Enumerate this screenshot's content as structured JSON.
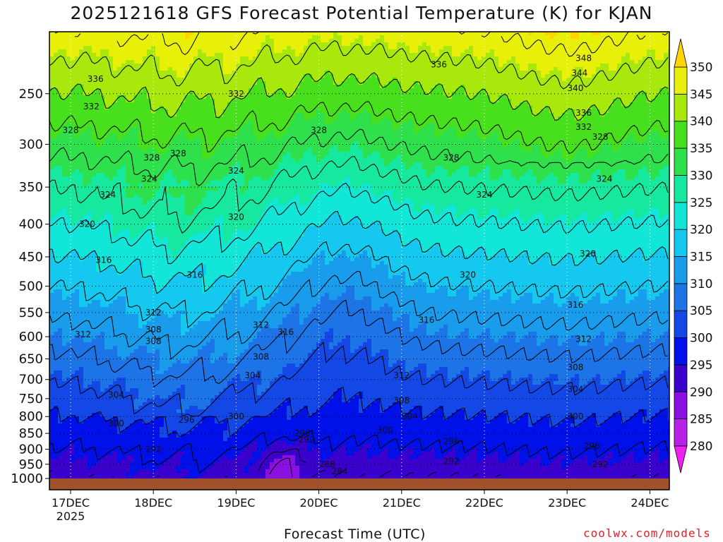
{
  "chart_data": {
    "type": "heatmap",
    "title": "2025121618 GFS Forecast Potential Temperature (K) for KJAN",
    "xlabel": "Forecast Time (UTC)",
    "ylabel": "",
    "credit": "coolwx.com/models",
    "x_ticks": [
      "17DEC",
      "18DEC",
      "19DEC",
      "20DEC",
      "21DEC",
      "22DEC",
      "23DEC",
      "24DEC"
    ],
    "x_year_label": "2025",
    "y_ticks": [
      250,
      300,
      350,
      400,
      450,
      500,
      550,
      600,
      650,
      700,
      750,
      800,
      850,
      900,
      950,
      1000
    ],
    "y_range": [
      1000,
      200
    ],
    "y_scale": "log",
    "grid": true,
    "colorbar": {
      "levels": [
        280,
        285,
        290,
        295,
        300,
        305,
        310,
        315,
        320,
        325,
        330,
        335,
        340,
        345,
        350
      ],
      "colors": [
        "#ee22ee",
        "#b822e8",
        "#8a10e2",
        "#3a00cc",
        "#0010e8",
        "#1448e6",
        "#1d74e6",
        "#1a9cec",
        "#14c8f0",
        "#12e6d8",
        "#16e8a0",
        "#2ee04c",
        "#48e01c",
        "#a8e80c",
        "#e8f00a",
        "#ffd400"
      ],
      "location": "right"
    },
    "contour_levels": [
      284,
      288,
      292,
      296,
      300,
      304,
      308,
      312,
      316,
      320,
      324,
      328,
      332,
      336,
      340,
      344,
      348
    ],
    "contour_labels": [
      {
        "text": "336",
        "x": 0.3,
        "p": 237
      },
      {
        "text": "332",
        "x": 0.25,
        "p": 262
      },
      {
        "text": "328",
        "x": 0.0,
        "p": 285
      },
      {
        "text": "328",
        "x": 0.98,
        "p": 315
      },
      {
        "text": "324",
        "x": 0.95,
        "p": 340
      },
      {
        "text": "324",
        "x": 0.45,
        "p": 360
      },
      {
        "text": "320",
        "x": 0.2,
        "p": 400
      },
      {
        "text": "316",
        "x": 0.4,
        "p": 455
      },
      {
        "text": "312",
        "x": 1.0,
        "p": 550
      },
      {
        "text": "312",
        "x": 0.15,
        "p": 595
      },
      {
        "text": "308",
        "x": 1.0,
        "p": 585
      },
      {
        "text": "304",
        "x": 0.55,
        "p": 740
      },
      {
        "text": "300",
        "x": 0.55,
        "p": 820
      },
      {
        "text": "296",
        "x": 1.4,
        "p": 810
      },
      {
        "text": "292",
        "x": 1.0,
        "p": 900
      },
      {
        "text": "332",
        "x": 2.0,
        "p": 250
      },
      {
        "text": "328",
        "x": 1.3,
        "p": 310
      },
      {
        "text": "324",
        "x": 2.0,
        "p": 330
      },
      {
        "text": "320",
        "x": 2.0,
        "p": 390
      },
      {
        "text": "316",
        "x": 1.5,
        "p": 480
      },
      {
        "text": "308",
        "x": 1.0,
        "p": 610
      },
      {
        "text": "300",
        "x": 2.0,
        "p": 800
      },
      {
        "text": "304",
        "x": 2.2,
        "p": 690
      },
      {
        "text": "308",
        "x": 2.3,
        "p": 645
      },
      {
        "text": "312",
        "x": 2.3,
        "p": 575
      },
      {
        "text": "316",
        "x": 2.6,
        "p": 590
      },
      {
        "text": "296",
        "x": 2.8,
        "p": 850
      },
      {
        "text": "292",
        "x": 2.85,
        "p": 870
      },
      {
        "text": "288",
        "x": 3.1,
        "p": 950
      },
      {
        "text": "284",
        "x": 3.25,
        "p": 975
      },
      {
        "text": "328",
        "x": 3.0,
        "p": 285
      },
      {
        "text": "312",
        "x": 4.0,
        "p": 690
      },
      {
        "text": "308",
        "x": 4.0,
        "p": 755
      },
      {
        "text": "300",
        "x": 3.8,
        "p": 840
      },
      {
        "text": "304",
        "x": 4.1,
        "p": 800
      },
      {
        "text": "316",
        "x": 4.3,
        "p": 565
      },
      {
        "text": "320",
        "x": 4.8,
        "p": 480
      },
      {
        "text": "324",
        "x": 5.0,
        "p": 360
      },
      {
        "text": "328",
        "x": 4.6,
        "p": 315
      },
      {
        "text": "336",
        "x": 4.45,
        "p": 225
      },
      {
        "text": "296",
        "x": 4.6,
        "p": 875
      },
      {
        "text": "292",
        "x": 4.6,
        "p": 940
      },
      {
        "text": "348",
        "x": 6.2,
        "p": 220
      },
      {
        "text": "344",
        "x": 6.15,
        "p": 232
      },
      {
        "text": "340",
        "x": 6.1,
        "p": 245
      },
      {
        "text": "336",
        "x": 6.2,
        "p": 268
      },
      {
        "text": "332",
        "x": 6.2,
        "p": 282
      },
      {
        "text": "328",
        "x": 6.4,
        "p": 292
      },
      {
        "text": "324",
        "x": 6.45,
        "p": 340
      },
      {
        "text": "320",
        "x": 6.25,
        "p": 445
      },
      {
        "text": "316",
        "x": 6.1,
        "p": 535
      },
      {
        "text": "312",
        "x": 6.2,
        "p": 605
      },
      {
        "text": "308",
        "x": 6.1,
        "p": 670
      },
      {
        "text": "304",
        "x": 6.1,
        "p": 725
      },
      {
        "text": "300",
        "x": 6.1,
        "p": 800
      },
      {
        "text": "296",
        "x": 6.3,
        "p": 890
      },
      {
        "text": "292",
        "x": 6.4,
        "p": 950
      }
    ]
  }
}
